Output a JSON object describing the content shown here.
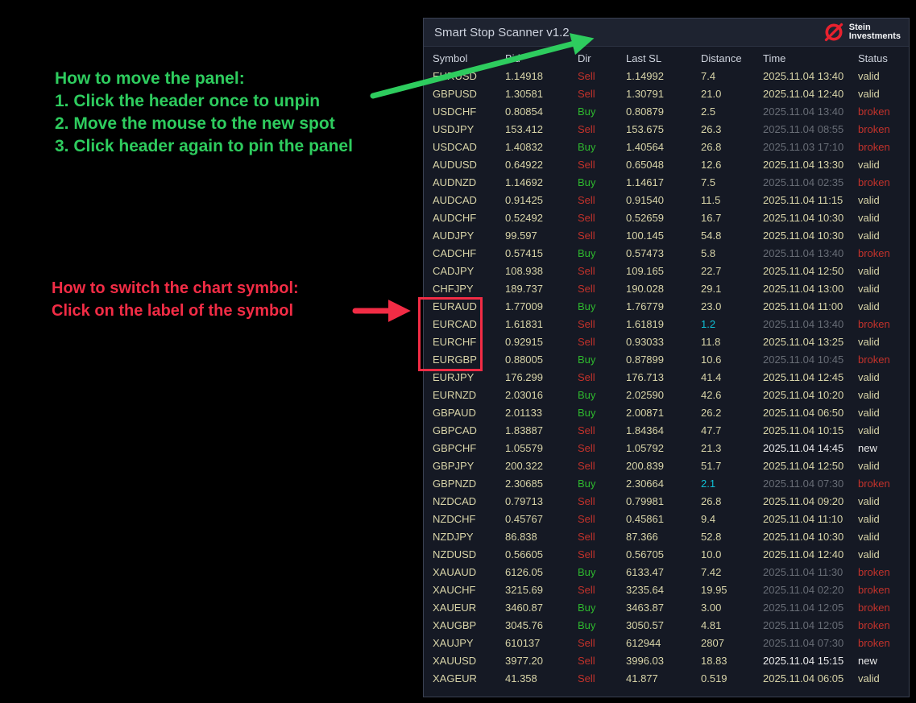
{
  "panel": {
    "title": "Smart Stop Scanner v1.2",
    "brand": {
      "line1": "Stein",
      "line2": "Investments"
    },
    "columns": [
      "Symbol",
      "Bid",
      "Dir",
      "Last SL",
      "Distance",
      "Time",
      "Status"
    ],
    "rows": [
      {
        "symbol": "EURUSD",
        "bid": "1.14918",
        "dir": "Sell",
        "last_sl": "1.14992",
        "distance": "7.4",
        "time": "2025.11.04 13:40",
        "status": "valid"
      },
      {
        "symbol": "GBPUSD",
        "bid": "1.30581",
        "dir": "Sell",
        "last_sl": "1.30791",
        "distance": "21.0",
        "time": "2025.11.04 12:40",
        "status": "valid"
      },
      {
        "symbol": "USDCHF",
        "bid": "0.80854",
        "dir": "Buy",
        "last_sl": "0.80879",
        "distance": "2.5",
        "time": "2025.11.04 13:40",
        "status": "broken"
      },
      {
        "symbol": "USDJPY",
        "bid": "153.412",
        "dir": "Sell",
        "last_sl": "153.675",
        "distance": "26.3",
        "time": "2025.11.04 08:55",
        "status": "broken"
      },
      {
        "symbol": "USDCAD",
        "bid": "1.40832",
        "dir": "Buy",
        "last_sl": "1.40564",
        "distance": "26.8",
        "time": "2025.11.03 17:10",
        "status": "broken"
      },
      {
        "symbol": "AUDUSD",
        "bid": "0.64922",
        "dir": "Sell",
        "last_sl": "0.65048",
        "distance": "12.6",
        "time": "2025.11.04 13:30",
        "status": "valid"
      },
      {
        "symbol": "AUDNZD",
        "bid": "1.14692",
        "dir": "Buy",
        "last_sl": "1.14617",
        "distance": "7.5",
        "time": "2025.11.04 02:35",
        "status": "broken"
      },
      {
        "symbol": "AUDCAD",
        "bid": "0.91425",
        "dir": "Sell",
        "last_sl": "0.91540",
        "distance": "11.5",
        "time": "2025.11.04 11:15",
        "status": "valid"
      },
      {
        "symbol": "AUDCHF",
        "bid": "0.52492",
        "dir": "Sell",
        "last_sl": "0.52659",
        "distance": "16.7",
        "time": "2025.11.04 10:30",
        "status": "valid"
      },
      {
        "symbol": "AUDJPY",
        "bid": "99.597",
        "dir": "Sell",
        "last_sl": "100.145",
        "distance": "54.8",
        "time": "2025.11.04 10:30",
        "status": "valid"
      },
      {
        "symbol": "CADCHF",
        "bid": "0.57415",
        "dir": "Buy",
        "last_sl": "0.57473",
        "distance": "5.8",
        "time": "2025.11.04 13:40",
        "status": "broken"
      },
      {
        "symbol": "CADJPY",
        "bid": "108.938",
        "dir": "Sell",
        "last_sl": "109.165",
        "distance": "22.7",
        "time": "2025.11.04 12:50",
        "status": "valid"
      },
      {
        "symbol": "CHFJPY",
        "bid": "189.737",
        "dir": "Sell",
        "last_sl": "190.028",
        "distance": "29.1",
        "time": "2025.11.04 13:00",
        "status": "valid"
      },
      {
        "symbol": "EURAUD",
        "bid": "1.77009",
        "dir": "Buy",
        "last_sl": "1.76779",
        "distance": "23.0",
        "time": "2025.11.04 11:00",
        "status": "valid"
      },
      {
        "symbol": "EURCAD",
        "bid": "1.61831",
        "dir": "Sell",
        "last_sl": "1.61819",
        "distance": "1.2",
        "distance_highlight": true,
        "time": "2025.11.04 13:40",
        "status": "broken"
      },
      {
        "symbol": "EURCHF",
        "bid": "0.92915",
        "dir": "Sell",
        "last_sl": "0.93033",
        "distance": "11.8",
        "time": "2025.11.04 13:25",
        "status": "valid"
      },
      {
        "symbol": "EURGBP",
        "bid": "0.88005",
        "dir": "Buy",
        "last_sl": "0.87899",
        "distance": "10.6",
        "time": "2025.11.04 10:45",
        "status": "broken"
      },
      {
        "symbol": "EURJPY",
        "bid": "176.299",
        "dir": "Sell",
        "last_sl": "176.713",
        "distance": "41.4",
        "time": "2025.11.04 12:45",
        "status": "valid"
      },
      {
        "symbol": "EURNZD",
        "bid": "2.03016",
        "dir": "Buy",
        "last_sl": "2.02590",
        "distance": "42.6",
        "time": "2025.11.04 10:20",
        "status": "valid"
      },
      {
        "symbol": "GBPAUD",
        "bid": "2.01133",
        "dir": "Buy",
        "last_sl": "2.00871",
        "distance": "26.2",
        "time": "2025.11.04 06:50",
        "status": "valid"
      },
      {
        "symbol": "GBPCAD",
        "bid": "1.83887",
        "dir": "Sell",
        "last_sl": "1.84364",
        "distance": "47.7",
        "time": "2025.11.04 10:15",
        "status": "valid"
      },
      {
        "symbol": "GBPCHF",
        "bid": "1.05579",
        "dir": "Sell",
        "last_sl": "1.05792",
        "distance": "21.3",
        "time": "2025.11.04 14:45",
        "status": "new"
      },
      {
        "symbol": "GBPJPY",
        "bid": "200.322",
        "dir": "Sell",
        "last_sl": "200.839",
        "distance": "51.7",
        "time": "2025.11.04 12:50",
        "status": "valid"
      },
      {
        "symbol": "GBPNZD",
        "bid": "2.30685",
        "dir": "Buy",
        "last_sl": "2.30664",
        "distance": "2.1",
        "distance_highlight": true,
        "time": "2025.11.04 07:30",
        "status": "broken"
      },
      {
        "symbol": "NZDCAD",
        "bid": "0.79713",
        "dir": "Sell",
        "last_sl": "0.79981",
        "distance": "26.8",
        "time": "2025.11.04 09:20",
        "status": "valid"
      },
      {
        "symbol": "NZDCHF",
        "bid": "0.45767",
        "dir": "Sell",
        "last_sl": "0.45861",
        "distance": "9.4",
        "time": "2025.11.04 11:10",
        "status": "valid"
      },
      {
        "symbol": "NZDJPY",
        "bid": "86.838",
        "dir": "Sell",
        "last_sl": "87.366",
        "distance": "52.8",
        "time": "2025.11.04 10:30",
        "status": "valid"
      },
      {
        "symbol": "NZDUSD",
        "bid": "0.56605",
        "dir": "Sell",
        "last_sl": "0.56705",
        "distance": "10.0",
        "time": "2025.11.04 12:40",
        "status": "valid"
      },
      {
        "symbol": "XAUAUD",
        "bid": "6126.05",
        "dir": "Buy",
        "last_sl": "6133.47",
        "distance": "7.42",
        "time": "2025.11.04 11:30",
        "status": "broken"
      },
      {
        "symbol": "XAUCHF",
        "bid": "3215.69",
        "dir": "Sell",
        "last_sl": "3235.64",
        "distance": "19.95",
        "time": "2025.11.04 02:20",
        "status": "broken"
      },
      {
        "symbol": "XAUEUR",
        "bid": "3460.87",
        "dir": "Buy",
        "last_sl": "3463.87",
        "distance": "3.00",
        "time": "2025.11.04 12:05",
        "status": "broken"
      },
      {
        "symbol": "XAUGBP",
        "bid": "3045.76",
        "dir": "Buy",
        "last_sl": "3050.57",
        "distance": "4.81",
        "time": "2025.11.04 12:05",
        "status": "broken"
      },
      {
        "symbol": "XAUJPY",
        "bid": "610137",
        "dir": "Sell",
        "last_sl": "612944",
        "distance": "2807",
        "time": "2025.11.04 07:30",
        "status": "broken"
      },
      {
        "symbol": "XAUUSD",
        "bid": "3977.20",
        "dir": "Sell",
        "last_sl": "3996.03",
        "distance": "18.83",
        "time": "2025.11.04 15:15",
        "status": "new"
      },
      {
        "symbol": "XAGEUR",
        "bid": "41.358",
        "dir": "Sell",
        "last_sl": "41.877",
        "distance": "0.519",
        "time": "2025.11.04 06:05",
        "status": "valid"
      }
    ]
  },
  "annotations": {
    "move_panel": {
      "line1": "How to move the panel:",
      "line2": "1. Click the header once to unpin",
      "line3": "2. Move the mouse to the new spot",
      "line4": "3. Click header again to pin the panel"
    },
    "switch_symbol": {
      "line1": "How to switch the chart symbol:",
      "line2": "Click on the label of the symbol",
      "highlighted_symbols": [
        "EURAUD",
        "EURCAD",
        "EURCHF",
        "EURGBP"
      ]
    }
  },
  "colors": {
    "annotation_green": "#2ecc5e",
    "annotation_red": "#f22c45",
    "buy": "#2eb82e",
    "sell": "#c3322b",
    "status_broken": "#c3322b",
    "status_new": "#ebebeb",
    "row_text_khaki": "#d8d4a8",
    "dim_time": "#686d76",
    "distance_highlight": "#10bfd4",
    "panel_bg": "#151924",
    "titlebar_bg": "#1e2330",
    "logo_red": "#e8212e"
  }
}
